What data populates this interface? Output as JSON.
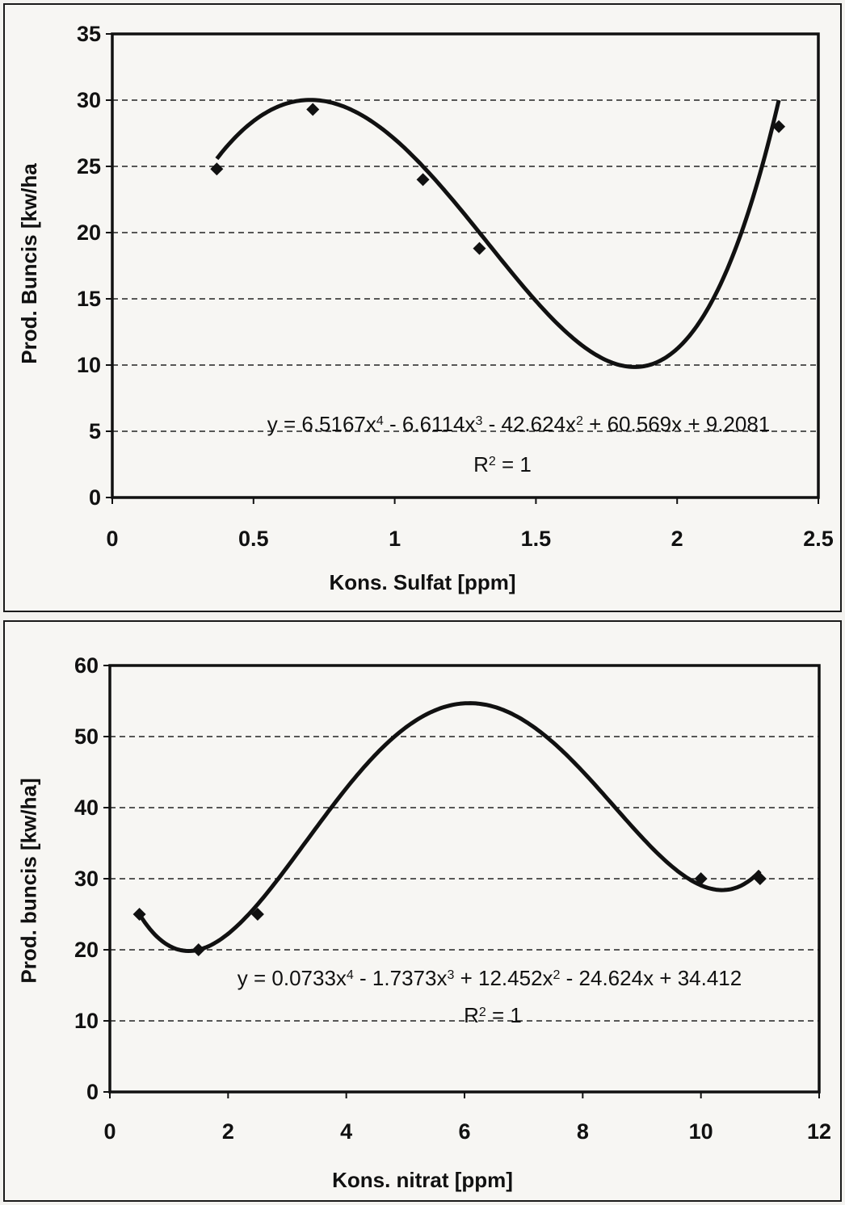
{
  "chart_data": [
    {
      "type": "scatter",
      "title": "",
      "xlabel": "Kons. Sulfat [ppm]",
      "ylabel": "Prod. Buncis [kw/ha",
      "xlim": [
        0,
        2.5
      ],
      "ylim": [
        0,
        35
      ],
      "xticks": [
        "0",
        "0.5",
        "1",
        "1.5",
        "2",
        "2.5"
      ],
      "yticks": [
        "0",
        "5",
        "10",
        "15",
        "20",
        "25",
        "30",
        "35"
      ],
      "grid": "horizontal dashed",
      "series": [
        {
          "points": [
            {
              "x": 0.37,
              "y": 24.8
            },
            {
              "x": 0.71,
              "y": 29.3
            },
            {
              "x": 1.1,
              "y": 24.0
            },
            {
              "x": 1.3,
              "y": 18.8
            },
            {
              "x": 2.36,
              "y": 28.0
            }
          ],
          "trendline": {
            "type": "polynomial",
            "coefficients": [
              6.5167,
              -6.6114,
              -42.624,
              60.569,
              9.2081
            ]
          }
        }
      ],
      "equation": {
        "eq_parts": [
          "y = 6.5167x",
          "4",
          " - 6.6114x",
          "3",
          " - 42.624x",
          "2",
          " + 60.569x + 9.2081"
        ],
        "r2_parts": [
          "R",
          "2",
          " = 1"
        ]
      },
      "colors": {
        "line": "#111111",
        "marker": "#111111",
        "grid": "#222222"
      }
    },
    {
      "type": "scatter",
      "title": "",
      "xlabel": "Kons. nitrat [ppm]",
      "ylabel": "Prod. buncis [kw/ha]",
      "xlim": [
        0,
        12
      ],
      "ylim": [
        0,
        60
      ],
      "xticks": [
        "0",
        "2",
        "4",
        "6",
        "8",
        "10",
        "12"
      ],
      "yticks": [
        "0",
        "10",
        "20",
        "30",
        "40",
        "50",
        "60"
      ],
      "grid": "horizontal dashed",
      "series": [
        {
          "points": [
            {
              "x": 0.5,
              "y": 25
            },
            {
              "x": 1.5,
              "y": 20
            },
            {
              "x": 2.5,
              "y": 25
            },
            {
              "x": 10,
              "y": 30
            },
            {
              "x": 11,
              "y": 30
            }
          ],
          "trendline": {
            "type": "polynomial",
            "coefficients": [
              0.0733,
              -1.7373,
              12.452,
              -24.624,
              34.412
            ]
          }
        }
      ],
      "equation": {
        "eq_parts": [
          "y = 0.0733x",
          "4",
          " - 1.7373x",
          "3",
          " + 12.452x",
          "2",
          " - 24.624x + 34.412"
        ],
        "r2_parts": [
          "R",
          "2",
          " = 1"
        ]
      },
      "colors": {
        "line": "#111111",
        "marker": "#111111",
        "grid": "#222222"
      }
    }
  ]
}
